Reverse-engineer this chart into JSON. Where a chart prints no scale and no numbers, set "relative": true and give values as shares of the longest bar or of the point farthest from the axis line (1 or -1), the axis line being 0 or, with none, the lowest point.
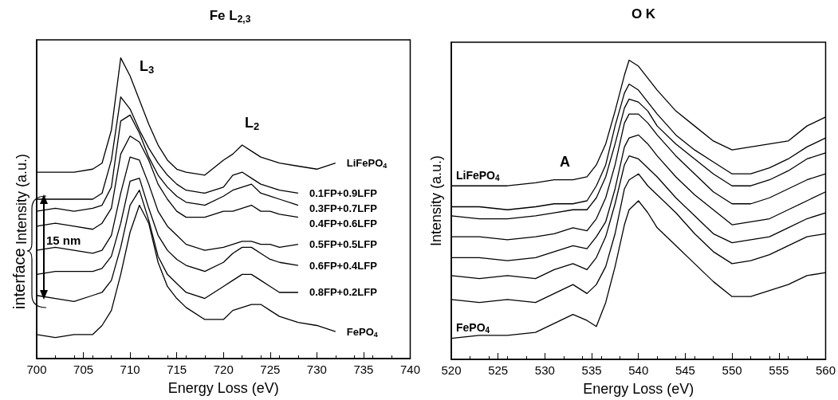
{
  "chart_data": [
    {
      "type": "line",
      "title": "Fe L$_{2,3}$",
      "xlabel": "Energy Loss (eV)",
      "ylabel": "Intensity (a.u.)",
      "relative": true,
      "xlim": [
        700,
        740
      ],
      "xticks": [
        700,
        705,
        710,
        715,
        720,
        725,
        730,
        735,
        740
      ],
      "annotations": [
        "L$_{3}$",
        "L$_{2}$",
        "interface",
        "15 nm"
      ],
      "series": [
        {
          "name": "LiFePO$_{4}$",
          "color": "#000000",
          "x": [
            700,
            702,
            704,
            706,
            707,
            708,
            709,
            710,
            711,
            712,
            713,
            714,
            715,
            716,
            718,
            720,
            721,
            722,
            723,
            724,
            725,
            726,
            728,
            730,
            732
          ],
          "values": [
            0.62,
            0.62,
            0.62,
            0.63,
            0.65,
            0.76,
            1.0,
            0.94,
            0.86,
            0.78,
            0.71,
            0.66,
            0.63,
            0.62,
            0.61,
            0.66,
            0.68,
            0.71,
            0.69,
            0.67,
            0.66,
            0.65,
            0.64,
            0.63,
            0.65
          ]
        },
        {
          "name": "0.1FP+0.9LFP",
          "color": "#000000",
          "x": [
            700,
            702,
            704,
            706,
            707,
            708,
            709,
            710,
            711,
            712,
            713,
            714,
            715,
            716,
            718,
            720,
            721,
            722,
            723,
            724,
            725,
            726,
            728
          ],
          "values": [
            0.53,
            0.53,
            0.53,
            0.53,
            0.55,
            0.66,
            0.87,
            0.83,
            0.76,
            0.7,
            0.65,
            0.61,
            0.58,
            0.56,
            0.55,
            0.57,
            0.61,
            0.62,
            0.6,
            0.58,
            0.57,
            0.56,
            0.55
          ]
        },
        {
          "name": "0.3FP+0.7LFP",
          "color": "#000000",
          "x": [
            700,
            702,
            704,
            706,
            707,
            708,
            709,
            710,
            711,
            712,
            713,
            714,
            715,
            716,
            718,
            720,
            721,
            722,
            723,
            724,
            725,
            726,
            728
          ],
          "values": [
            0.49,
            0.5,
            0.49,
            0.5,
            0.51,
            0.57,
            0.79,
            0.81,
            0.75,
            0.67,
            0.61,
            0.57,
            0.54,
            0.52,
            0.51,
            0.54,
            0.56,
            0.57,
            0.58,
            0.55,
            0.54,
            0.53,
            0.51
          ]
        },
        {
          "name": "0.4FP+0.6LFP",
          "color": "#000000",
          "x": [
            700,
            702,
            704,
            706,
            707,
            708,
            709,
            710,
            711,
            712,
            713,
            714,
            715,
            716,
            718,
            720,
            721,
            722,
            723,
            724,
            725,
            726,
            728
          ],
          "values": [
            0.44,
            0.45,
            0.44,
            0.43,
            0.45,
            0.5,
            0.68,
            0.74,
            0.72,
            0.66,
            0.58,
            0.53,
            0.49,
            0.47,
            0.47,
            0.49,
            0.49,
            0.5,
            0.51,
            0.49,
            0.49,
            0.48,
            0.47
          ]
        },
        {
          "name": "0.5FP+0.5LFP",
          "color": "#000000",
          "x": [
            700,
            702,
            704,
            706,
            707,
            708,
            709,
            710,
            711,
            712,
            713,
            714,
            715,
            716,
            718,
            720,
            721,
            722,
            723,
            724,
            725,
            726,
            728
          ],
          "values": [
            0.36,
            0.37,
            0.36,
            0.35,
            0.36,
            0.41,
            0.55,
            0.67,
            0.66,
            0.58,
            0.49,
            0.44,
            0.41,
            0.38,
            0.36,
            0.37,
            0.38,
            0.39,
            0.39,
            0.38,
            0.38,
            0.37,
            0.38
          ]
        },
        {
          "name": "0.6FP+0.4LFP",
          "color": "#000000",
          "x": [
            700,
            702,
            704,
            706,
            707,
            708,
            709,
            710,
            711,
            712,
            713,
            714,
            715,
            716,
            718,
            720,
            721,
            722,
            723,
            724,
            725,
            726,
            728
          ],
          "values": [
            0.28,
            0.29,
            0.29,
            0.29,
            0.3,
            0.34,
            0.45,
            0.59,
            0.6,
            0.5,
            0.41,
            0.36,
            0.33,
            0.31,
            0.29,
            0.32,
            0.35,
            0.37,
            0.37,
            0.35,
            0.33,
            0.32,
            0.31
          ]
        },
        {
          "name": "0.8FP+0.2LFP",
          "color": "#000000",
          "x": [
            700,
            702,
            704,
            706,
            707,
            708,
            709,
            710,
            711,
            712,
            713,
            714,
            715,
            716,
            718,
            720,
            721,
            722,
            723,
            724,
            725,
            726,
            728
          ],
          "values": [
            0.21,
            0.2,
            0.19,
            0.21,
            0.22,
            0.26,
            0.37,
            0.51,
            0.56,
            0.46,
            0.34,
            0.28,
            0.25,
            0.22,
            0.2,
            0.24,
            0.26,
            0.28,
            0.28,
            0.26,
            0.24,
            0.22,
            0.22
          ]
        },
        {
          "name": "FePO$_{4}$",
          "color": "#000000",
          "x": [
            700,
            702,
            704,
            706,
            707,
            708,
            709,
            710,
            711,
            712,
            713,
            714,
            715,
            716,
            718,
            720,
            721,
            722,
            723,
            724,
            725,
            726,
            728,
            730,
            732
          ],
          "values": [
            0.08,
            0.07,
            0.08,
            0.08,
            0.11,
            0.16,
            0.28,
            0.42,
            0.51,
            0.45,
            0.32,
            0.24,
            0.2,
            0.17,
            0.13,
            0.13,
            0.16,
            0.17,
            0.18,
            0.18,
            0.16,
            0.14,
            0.12,
            0.11,
            0.09
          ]
        }
      ]
    },
    {
      "type": "line",
      "title": "O K",
      "xlabel": "Energy Loss (eV)",
      "ylabel": "Intensity (a.u.)",
      "relative": true,
      "xlim": [
        520,
        560
      ],
      "xticks": [
        520,
        525,
        530,
        535,
        540,
        545,
        550,
        555,
        560
      ],
      "annotations": [
        "A"
      ],
      "series": [
        {
          "name": "LiFePO$_{4}$",
          "color": "#000000",
          "x": [
            520,
            523,
            526,
            529,
            531,
            533,
            534.5,
            535.5,
            536.5,
            537.5,
            538.5,
            539,
            540,
            541,
            542,
            544,
            546,
            548,
            550,
            552,
            554,
            556,
            558,
            560
          ],
          "values": [
            0.58,
            0.58,
            0.58,
            0.59,
            0.6,
            0.6,
            0.61,
            0.65,
            0.72,
            0.83,
            0.95,
            1.0,
            0.98,
            0.94,
            0.9,
            0.83,
            0.78,
            0.73,
            0.7,
            0.71,
            0.72,
            0.73,
            0.78,
            0.81
          ]
        },
        {
          "color": "#000000",
          "x": [
            520,
            523,
            526,
            529,
            531,
            533,
            534.5,
            535.5,
            536.5,
            537.5,
            538.5,
            539,
            540,
            541,
            542,
            544,
            546,
            548,
            550,
            552,
            554,
            556,
            558,
            560
          ],
          "values": [
            0.51,
            0.51,
            0.5,
            0.51,
            0.52,
            0.52,
            0.53,
            0.58,
            0.65,
            0.78,
            0.89,
            0.92,
            0.9,
            0.86,
            0.82,
            0.75,
            0.7,
            0.66,
            0.62,
            0.62,
            0.64,
            0.67,
            0.71,
            0.74
          ]
        },
        {
          "color": "#000000",
          "x": [
            520,
            523,
            526,
            529,
            531,
            533,
            534.5,
            535.5,
            536.5,
            537.5,
            538.5,
            539,
            540,
            541,
            542,
            544,
            546,
            548,
            550,
            552,
            554,
            556,
            558,
            560
          ],
          "values": [
            0.48,
            0.47,
            0.47,
            0.48,
            0.49,
            0.5,
            0.5,
            0.54,
            0.61,
            0.72,
            0.84,
            0.87,
            0.86,
            0.83,
            0.78,
            0.72,
            0.67,
            0.62,
            0.58,
            0.58,
            0.6,
            0.63,
            0.67,
            0.69
          ]
        },
        {
          "color": "#000000",
          "x": [
            520,
            523,
            526,
            529,
            531,
            533,
            534.5,
            535.5,
            536.5,
            537.5,
            538.5,
            539,
            540,
            541,
            542,
            544,
            546,
            548,
            550,
            552,
            554,
            556,
            558,
            560
          ],
          "values": [
            0.41,
            0.41,
            0.4,
            0.41,
            0.42,
            0.44,
            0.43,
            0.47,
            0.54,
            0.65,
            0.79,
            0.82,
            0.82,
            0.79,
            0.75,
            0.68,
            0.62,
            0.56,
            0.52,
            0.52,
            0.54,
            0.57,
            0.6,
            0.62
          ]
        },
        {
          "color": "#000000",
          "x": [
            520,
            523,
            526,
            529,
            531,
            533,
            534.5,
            535.5,
            536.5,
            537.5,
            538.5,
            539,
            540,
            541,
            542,
            544,
            546,
            548,
            550,
            552,
            554,
            556,
            558,
            560
          ],
          "values": [
            0.34,
            0.34,
            0.33,
            0.34,
            0.36,
            0.38,
            0.37,
            0.41,
            0.46,
            0.57,
            0.71,
            0.74,
            0.75,
            0.72,
            0.68,
            0.61,
            0.55,
            0.5,
            0.45,
            0.46,
            0.47,
            0.5,
            0.53,
            0.56
          ]
        },
        {
          "color": "#000000",
          "x": [
            520,
            523,
            526,
            529,
            531,
            533,
            534.5,
            535.5,
            536.5,
            537.5,
            538.5,
            539,
            540,
            541,
            542,
            544,
            546,
            548,
            550,
            552,
            554,
            556,
            558,
            560
          ],
          "values": [
            0.28,
            0.27,
            0.28,
            0.27,
            0.3,
            0.32,
            0.3,
            0.34,
            0.41,
            0.52,
            0.65,
            0.68,
            0.67,
            0.64,
            0.61,
            0.54,
            0.48,
            0.42,
            0.39,
            0.4,
            0.41,
            0.44,
            0.47,
            0.49
          ]
        },
        {
          "color": "#000000",
          "x": [
            520,
            523,
            526,
            529,
            531,
            533,
            534.5,
            535.5,
            536.5,
            537.5,
            538.5,
            539,
            540,
            541,
            542,
            544,
            546,
            548,
            550,
            552,
            554,
            556,
            558,
            560
          ],
          "values": [
            0.2,
            0.19,
            0.2,
            0.19,
            0.22,
            0.25,
            0.22,
            0.25,
            0.31,
            0.42,
            0.57,
            0.6,
            0.62,
            0.58,
            0.55,
            0.49,
            0.42,
            0.36,
            0.32,
            0.33,
            0.35,
            0.38,
            0.41,
            0.42
          ]
        },
        {
          "name": "FePO$_{4}$",
          "color": "#000000",
          "x": [
            520,
            523,
            526,
            529,
            531,
            533,
            534.5,
            535.5,
            536.5,
            537.5,
            538.5,
            539,
            540,
            541,
            542,
            544,
            546,
            548,
            550,
            552,
            554,
            556,
            558,
            560
          ],
          "values": [
            0.07,
            0.08,
            0.08,
            0.09,
            0.12,
            0.15,
            0.13,
            0.11,
            0.19,
            0.31,
            0.45,
            0.5,
            0.53,
            0.49,
            0.44,
            0.38,
            0.32,
            0.26,
            0.21,
            0.21,
            0.23,
            0.25,
            0.28,
            0.29
          ]
        }
      ]
    }
  ]
}
